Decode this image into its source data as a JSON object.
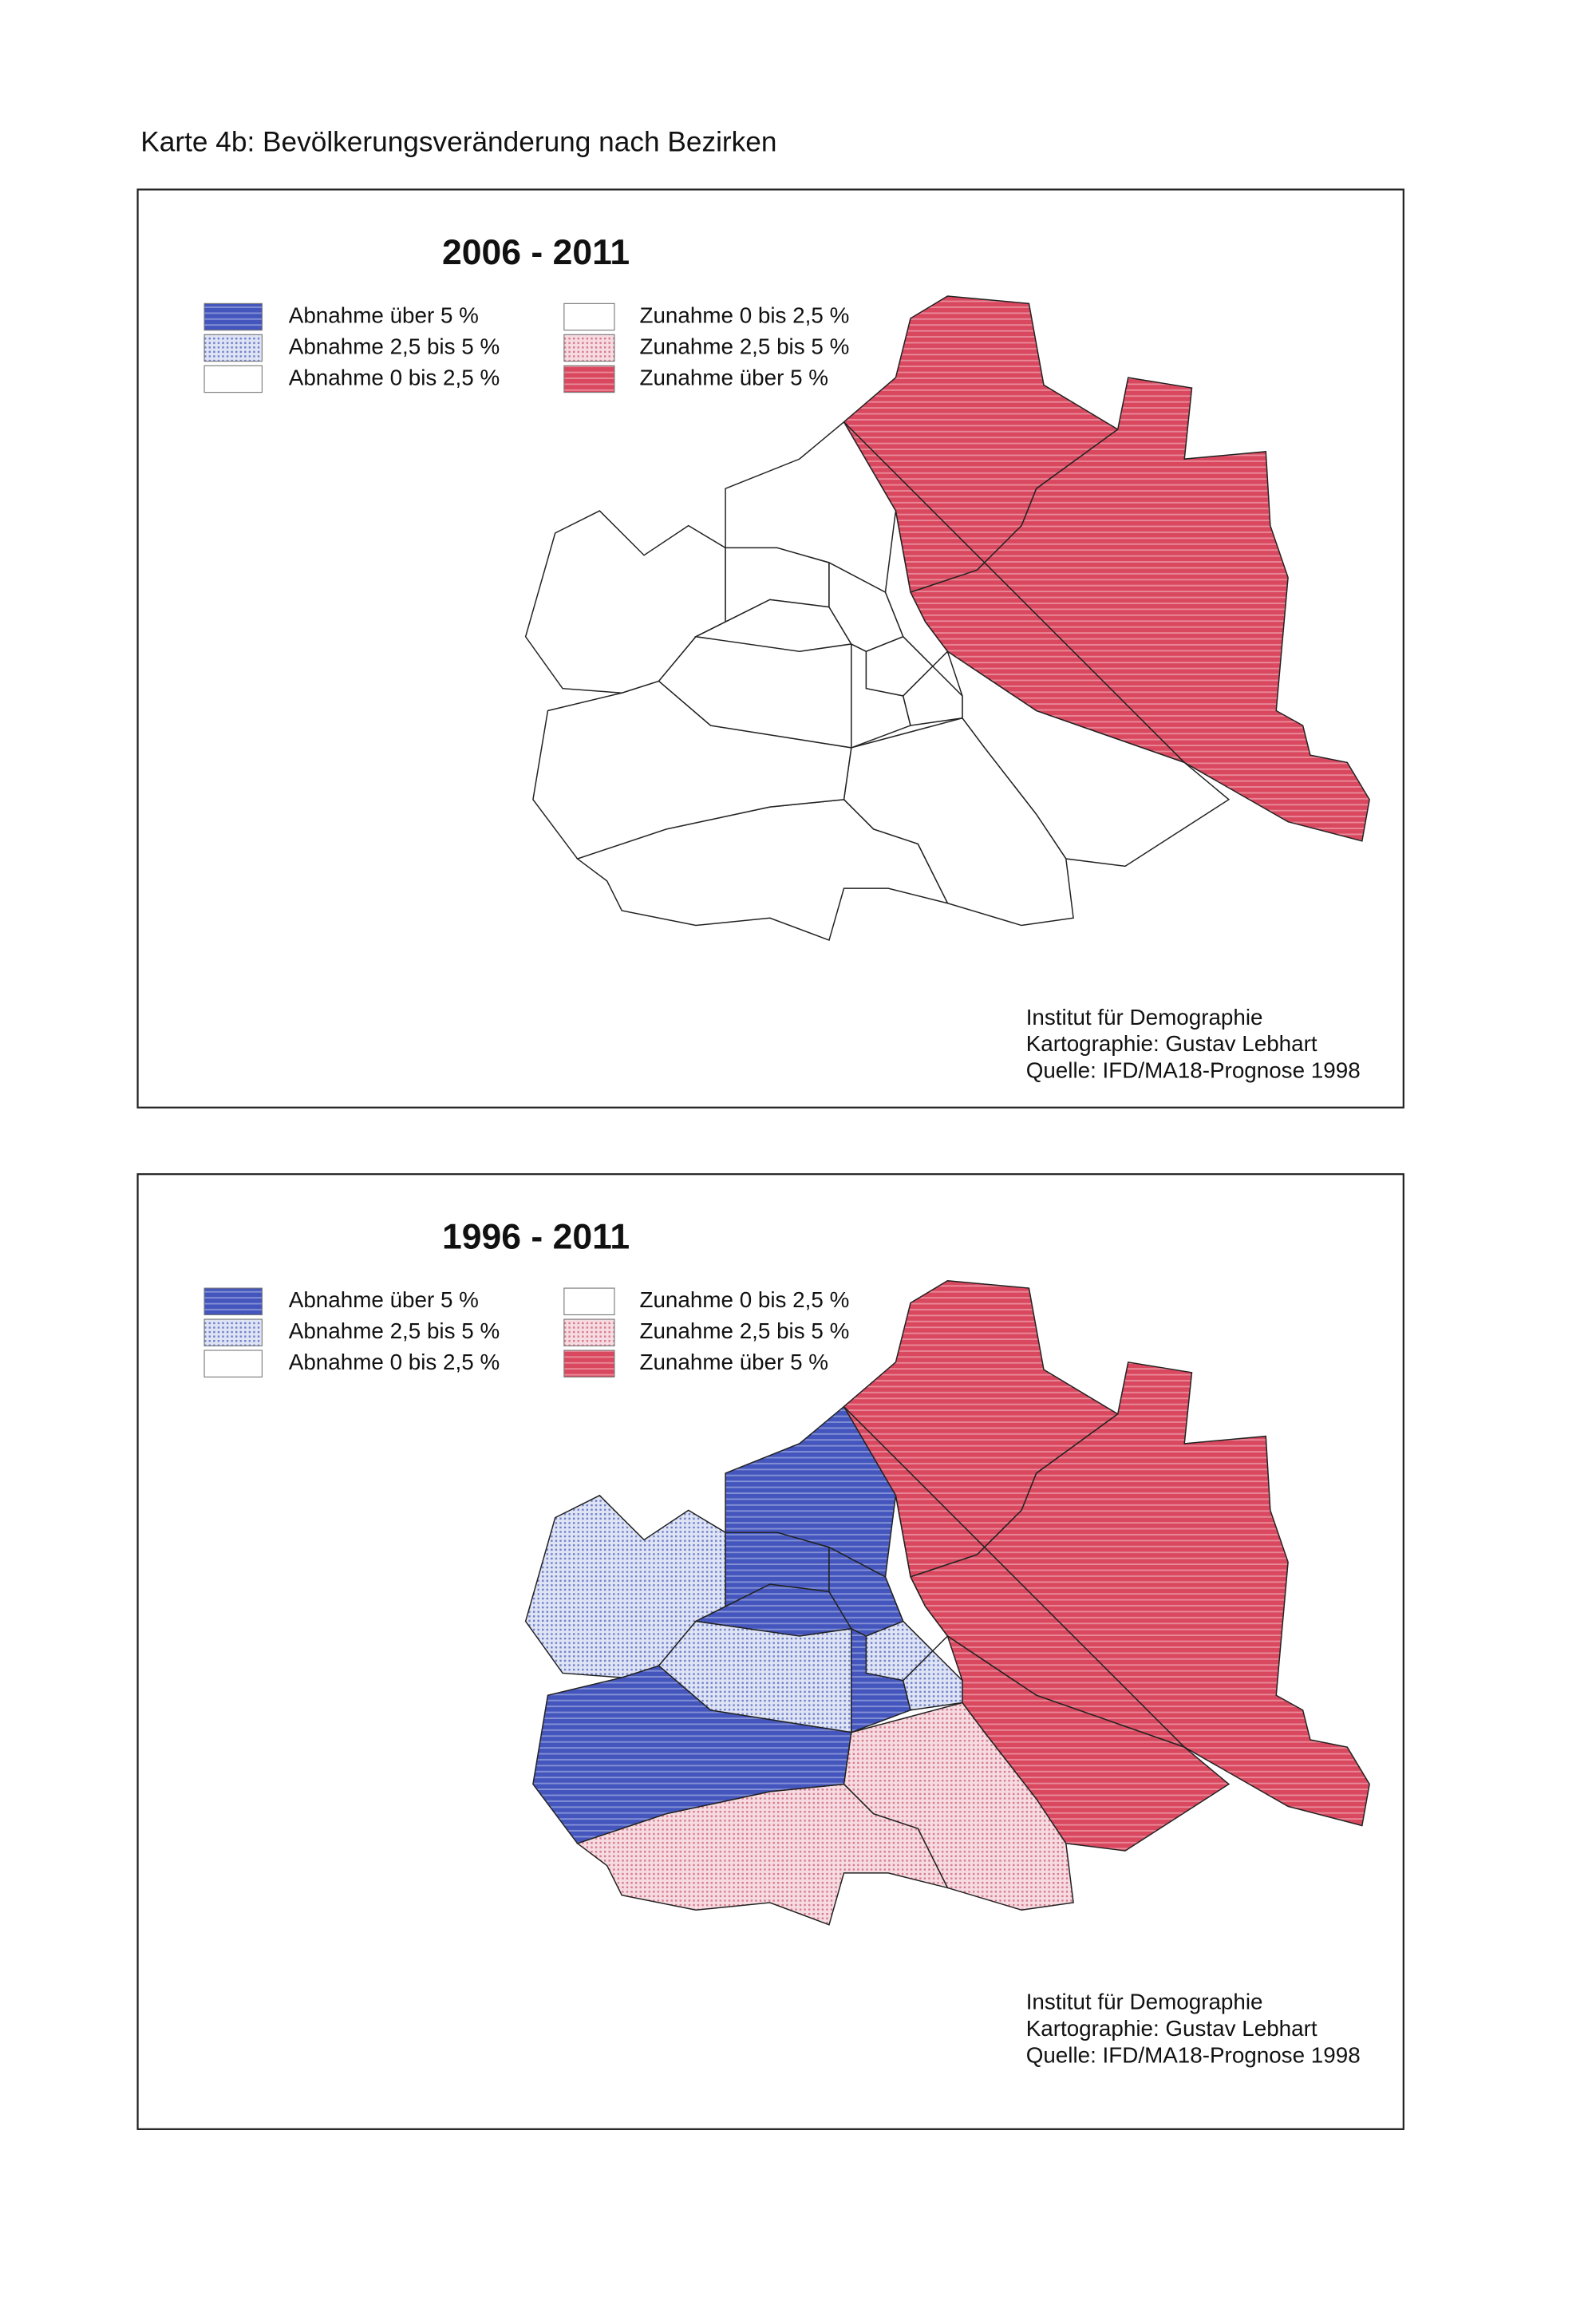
{
  "title": "Karte 4b: Bevölkerungsveränderung nach Bezirken",
  "maps": [
    {
      "title": "2006 - 2011",
      "legend": [
        "Abnahme über 5 %",
        "Abnahme 2,5 bis 5 %",
        "Abnahme 0 bis 2,5 %",
        "Zunahme 0 bis 2,5 %",
        "Zunahme 2,5 bis 5 %",
        "Zunahme über 5 %"
      ],
      "credits": [
        "Institut für Demographie",
        "Kartographie: Gustav Lebhart",
        "Quelle: IFD/MA18-Prognose 1998"
      ]
    },
    {
      "title": "1996 - 2011",
      "legend": [
        "Abnahme über 5 %",
        "Abnahme 2,5 bis 5 %",
        "Abnahme 0 bis 2,5 %",
        "Zunahme 0 bis 2,5 %",
        "Zunahme 2,5 bis 5 %",
        "Zunahme über 5 %"
      ],
      "credits": [
        "Institut für Demographie",
        "Kartographie: Gustav Lebhart",
        "Quelle: IFD/MA18-Prognose 1998"
      ]
    }
  ]
}
